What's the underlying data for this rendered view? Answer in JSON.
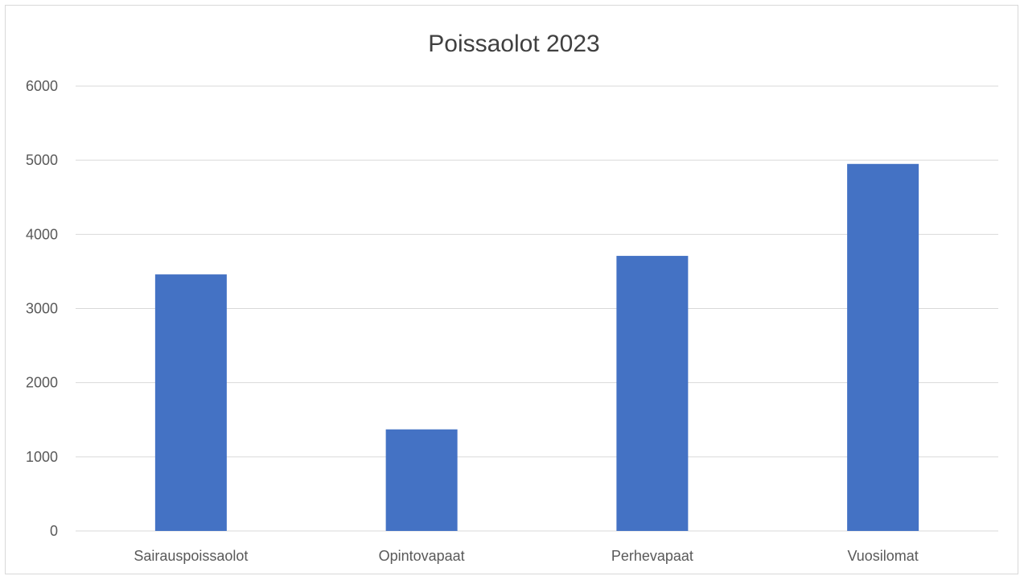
{
  "chart_data": {
    "type": "bar",
    "title": "Poissaolot 2023",
    "categories": [
      "Sairauspoissaolot",
      "Opintovapaat",
      "Perhevapaat",
      "Vuosilomat"
    ],
    "values": [
      3460,
      1370,
      3710,
      4950
    ],
    "ylim": [
      0,
      6000
    ],
    "yticks": [
      0,
      1000,
      2000,
      3000,
      4000,
      5000,
      6000
    ],
    "grid": true,
    "legend": "none",
    "bar_color": "#4472C4"
  }
}
